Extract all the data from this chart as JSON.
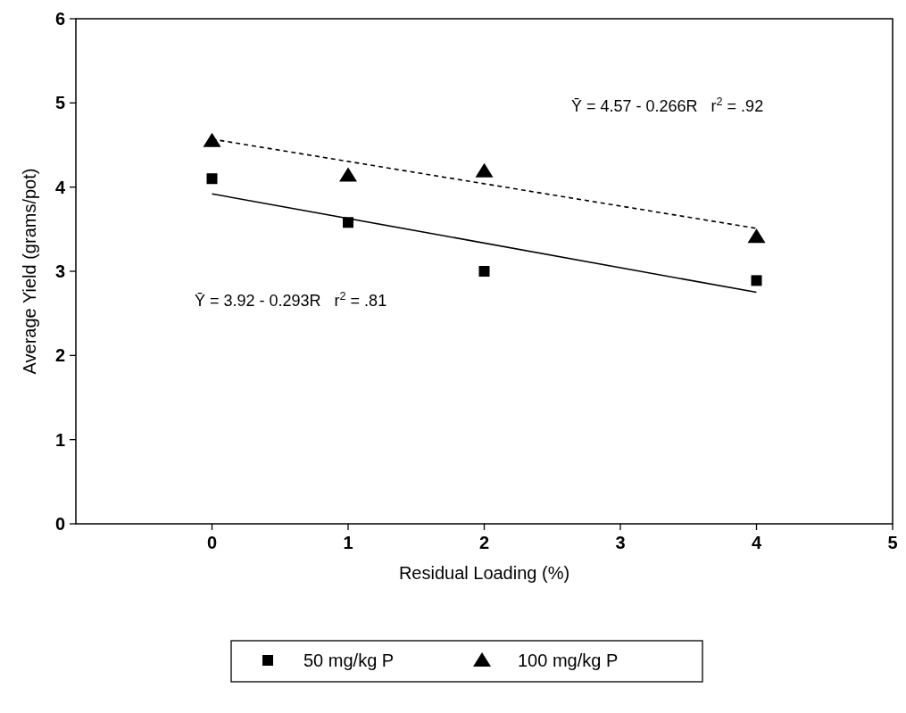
{
  "chart_data": {
    "type": "scatter",
    "xlabel": "Residual Loading (%)",
    "ylabel": "Average Yield (grams/pot)",
    "xlim": [
      -1,
      5
    ],
    "ylim": [
      0,
      6
    ],
    "xticks": [
      0,
      1,
      2,
      3,
      4,
      5
    ],
    "yticks": [
      0,
      1,
      2,
      3,
      4,
      5,
      6
    ],
    "grid": false,
    "legend": "bottom",
    "series": [
      {
        "name": "50 mg/kg P",
        "color": "#000000",
        "marker": "square",
        "x": [
          0,
          1,
          2,
          4
        ],
        "values": [
          4.1,
          3.58,
          3.0,
          2.89
        ]
      },
      {
        "name": "100 mg/kg P",
        "color": "#000000",
        "marker": "triangle",
        "x": [
          0,
          1,
          2,
          4
        ],
        "values": [
          4.55,
          4.14,
          4.19,
          3.41
        ]
      },
      {
        "type": "line",
        "color": "#000000",
        "line_style": "solid",
        "marker": "none",
        "x": [
          0,
          4
        ],
        "values": [
          3.92,
          2.75
        ]
      },
      {
        "type": "line",
        "color": "#000000",
        "line_style": "dashed",
        "marker": "none",
        "x": [
          0,
          4
        ],
        "values": [
          4.57,
          3.51
        ]
      }
    ],
    "annotations": [
      "Ȳ = 4.57 - 0.266R   r$^{2}$ = .92",
      "Ȳ = 3.92 - 0.293R   r$^{2}$ = .81"
    ]
  }
}
